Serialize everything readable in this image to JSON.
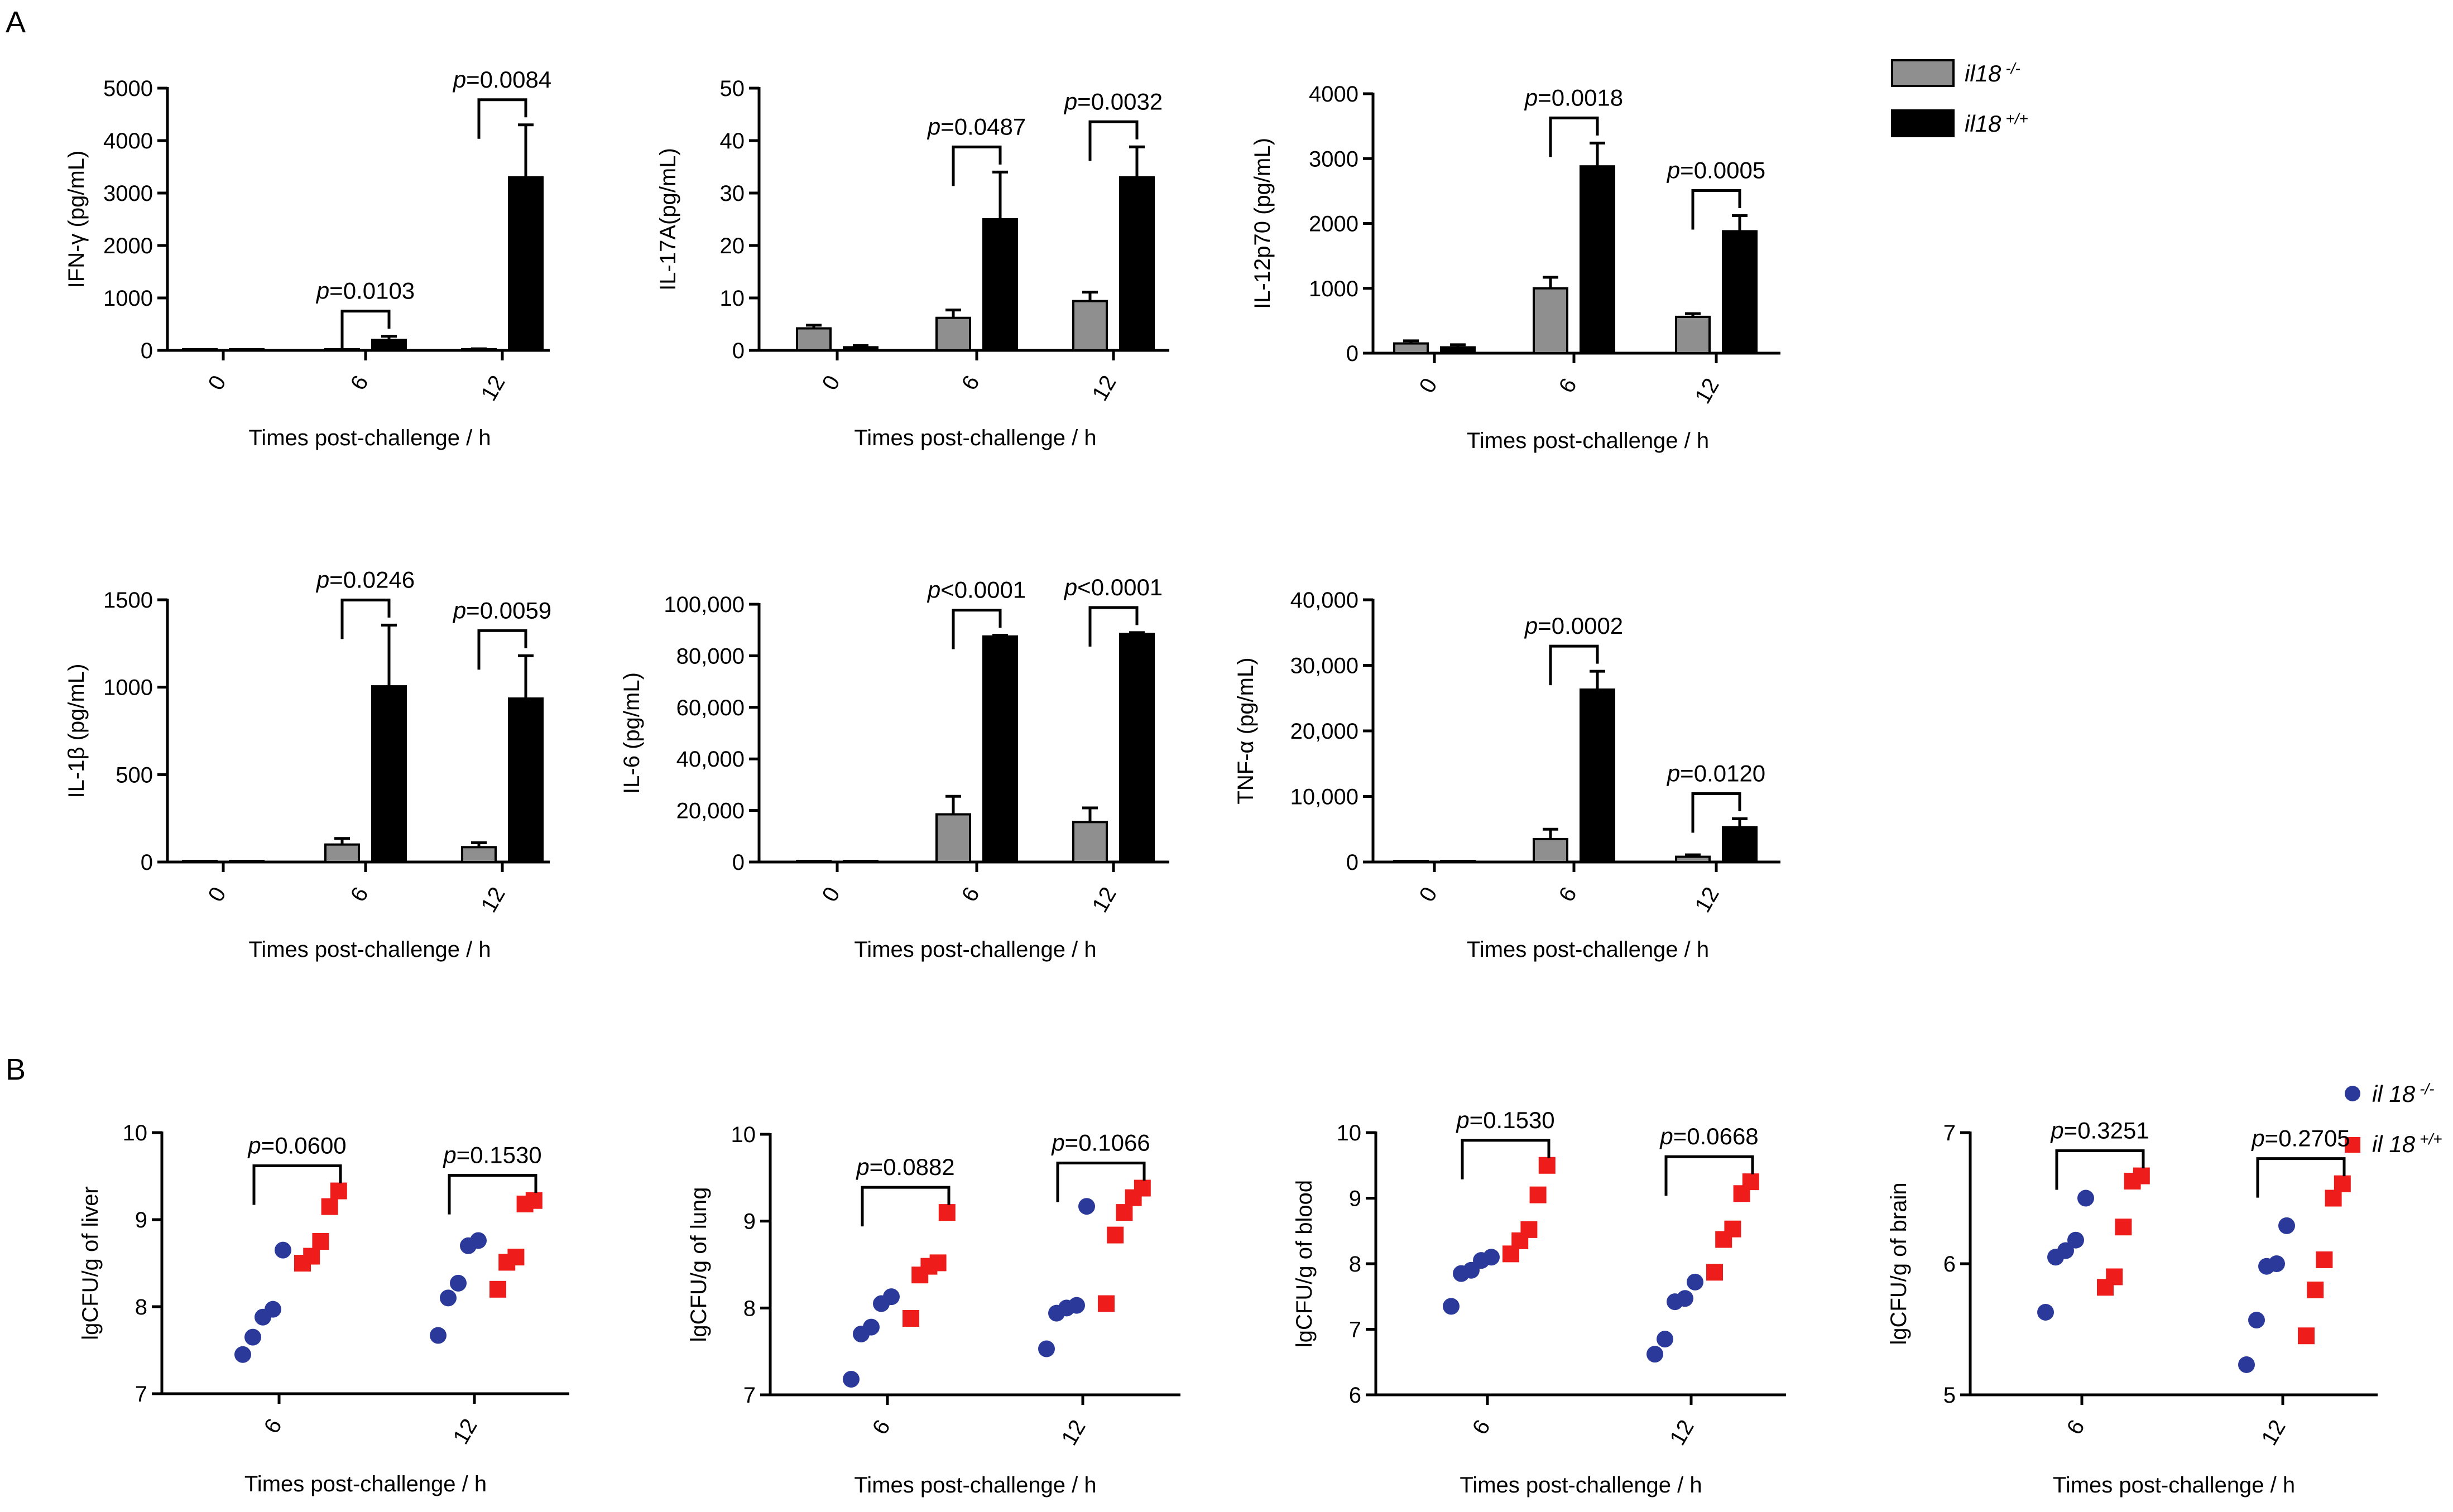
{
  "panel_labels": {
    "A": "A",
    "B": "B"
  },
  "legend_A": {
    "items": [
      {
        "name": "il18",
        "sup": "-/-",
        "color": "#8f8f8f"
      },
      {
        "name": "il18",
        "sup": "+/+",
        "color": "#000000"
      }
    ]
  },
  "legend_B": {
    "items": [
      {
        "name": "il 18",
        "sup": "-/-",
        "color": "#2b3a9a"
      },
      {
        "name": "il 18",
        "sup": "+/+",
        "color": "#ef1c1c"
      }
    ]
  },
  "chart_data": [
    {
      "type": "bar",
      "title": "",
      "ylabel": "IFN-γ  (pg/mL)",
      "xlabel": "Times post-challenge / h",
      "categories": [
        "0",
        "6",
        "12"
      ],
      "ylim": [
        0,
        5000
      ],
      "yticks": [
        0,
        1000,
        2000,
        3000,
        4000,
        5000
      ],
      "ytick_labels": [
        "0",
        "1000",
        "2000",
        "3000",
        "4000",
        "5000"
      ],
      "series": [
        {
          "name": "il18 -/-",
          "values": [
            0,
            0,
            20
          ],
          "errors": [
            0,
            0,
            10
          ]
        },
        {
          "name": "il18 +/+",
          "values": [
            0,
            200,
            3300
          ],
          "errors": [
            0,
            70,
            1000
          ]
        }
      ],
      "pvalues": [
        {
          "category": "6",
          "text": "0.0103"
        },
        {
          "category": "12",
          "text": "0.0084"
        }
      ]
    },
    {
      "type": "bar",
      "title": "",
      "ylabel": "IL-17A(pg/mL)",
      "xlabel": "Times post-challenge / h",
      "categories": [
        "0",
        "6",
        "12"
      ],
      "ylim": [
        0,
        50
      ],
      "yticks": [
        0,
        10,
        20,
        30,
        40,
        50
      ],
      "ytick_labels": [
        "0",
        "10",
        "20",
        "30",
        "40",
        "50"
      ],
      "series": [
        {
          "name": "il18 -/-",
          "values": [
            4.2,
            6.2,
            9.4
          ],
          "errors": [
            0.6,
            1.5,
            1.7
          ]
        },
        {
          "name": "il18 +/+",
          "values": [
            0.6,
            25,
            33
          ],
          "errors": [
            0.3,
            9,
            5.8
          ]
        }
      ],
      "pvalues": [
        {
          "category": "6",
          "text": "0.0487"
        },
        {
          "category": "12",
          "text": "0.0032"
        }
      ]
    },
    {
      "type": "bar",
      "title": "",
      "ylabel": "IL-12p70 (pg/mL)",
      "xlabel": "Times post-challenge / h",
      "categories": [
        "0",
        "6",
        "12"
      ],
      "ylim": [
        0,
        4000
      ],
      "yticks": [
        0,
        1000,
        2000,
        3000,
        4000
      ],
      "ytick_labels": [
        "0",
        "1000",
        "2000",
        "3000",
        "4000"
      ],
      "series": [
        {
          "name": "il18 -/-",
          "values": [
            150,
            1000,
            560
          ],
          "errors": [
            40,
            170,
            50
          ]
        },
        {
          "name": "il18 +/+",
          "values": [
            90,
            2880,
            1880
          ],
          "errors": [
            40,
            360,
            240
          ]
        }
      ],
      "pvalues": [
        {
          "category": "6",
          "text": "0.0018"
        },
        {
          "category": "12",
          "text": "0.0005"
        }
      ]
    },
    {
      "type": "bar",
      "title": "",
      "ylabel": "IL-1β (pg/mL)",
      "xlabel": "Times post-challenge / h",
      "categories": [
        "0",
        "6",
        "12"
      ],
      "ylim": [
        0,
        1500
      ],
      "yticks": [
        0,
        500,
        1000,
        1500
      ],
      "ytick_labels": [
        "0",
        "500",
        "1000",
        "1500"
      ],
      "series": [
        {
          "name": "il18 -/-",
          "values": [
            0,
            100,
            85
          ],
          "errors": [
            0,
            35,
            25
          ]
        },
        {
          "name": "il18 +/+",
          "values": [
            0,
            1005,
            935
          ],
          "errors": [
            0,
            350,
            245
          ]
        }
      ],
      "pvalues": [
        {
          "category": "6",
          "text": "0.0246"
        },
        {
          "category": "12",
          "text": "0.0059"
        }
      ]
    },
    {
      "type": "bar",
      "title": "",
      "ylabel": "IL-6  (pg/mL)",
      "xlabel": "Times post-challenge / h",
      "categories": [
        "0",
        "6",
        "12"
      ],
      "ylim": [
        0,
        100000
      ],
      "yticks": [
        0,
        20000,
        40000,
        60000,
        80000,
        100000
      ],
      "ytick_labels": [
        "0",
        "20,000",
        "40,000",
        "60,000",
        "80,000",
        "100,000"
      ],
      "series": [
        {
          "name": "il18 -/-",
          "values": [
            0,
            18500,
            15500
          ],
          "errors": [
            0,
            7000,
            5500
          ]
        },
        {
          "name": "il18 +/+",
          "values": [
            0,
            87500,
            88500
          ],
          "errors": [
            0,
            500,
            500
          ]
        }
      ],
      "pvalues": [
        {
          "category": "6",
          "text": "<0.0001"
        },
        {
          "category": "12",
          "text": "<0.0001"
        }
      ]
    },
    {
      "type": "bar",
      "title": "",
      "ylabel": "TNF-α (pg/mL)",
      "xlabel": "Times post-challenge / h",
      "categories": [
        "0",
        "6",
        "12"
      ],
      "ylim": [
        0,
        40000
      ],
      "yticks": [
        0,
        10000,
        20000,
        30000,
        40000
      ],
      "ytick_labels": [
        "0",
        "10,000",
        "20,000",
        "30,000",
        "40,000"
      ],
      "series": [
        {
          "name": "il18 -/-",
          "values": [
            0,
            3500,
            800
          ],
          "errors": [
            0,
            1500,
            300
          ]
        },
        {
          "name": "il18 +/+",
          "values": [
            0,
            26300,
            5300
          ],
          "errors": [
            0,
            2800,
            1300
          ]
        }
      ],
      "pvalues": [
        {
          "category": "6",
          "text": "0.0002"
        },
        {
          "category": "12",
          "text": "0.0120"
        }
      ]
    },
    {
      "type": "scatter",
      "title": "",
      "ylabel": "lgCFU/g of liver",
      "xlabel": "Times post-challenge  / h",
      "categories": [
        "6",
        "12"
      ],
      "ylim": [
        7,
        10
      ],
      "yticks": [
        7,
        8,
        9,
        10
      ],
      "ytick_labels": [
        "7",
        "8",
        "9",
        "10"
      ],
      "series": [
        {
          "name": "il 18 -/-",
          "values": [
            [
              7.45,
              7.65,
              7.88,
              7.97,
              8.65
            ],
            [
              7.67,
              8.1,
              8.27,
              8.7,
              8.76
            ]
          ]
        },
        {
          "name": "il 18 +/+",
          "values": [
            [
              8.5,
              8.58,
              8.75,
              9.15,
              9.33
            ],
            [
              8.2,
              8.51,
              8.57,
              9.18,
              9.22
            ]
          ]
        }
      ],
      "pvalues": [
        {
          "category": "6",
          "text": "0.0600"
        },
        {
          "category": "12",
          "text": "0.1530"
        }
      ]
    },
    {
      "type": "scatter",
      "title": "",
      "ylabel": "lgCFU/g of lung",
      "xlabel": "Times post-challenge  / h",
      "categories": [
        "6",
        "12"
      ],
      "ylim": [
        7,
        10
      ],
      "yticks": [
        7,
        8,
        9,
        10
      ],
      "ytick_labels": [
        "7",
        "8",
        "9",
        "10"
      ],
      "series": [
        {
          "name": "il 18 -/-",
          "values": [
            [
              7.18,
              7.7,
              7.78,
              8.05,
              8.13
            ],
            [
              7.53,
              7.94,
              8.0,
              8.03,
              9.17
            ]
          ]
        },
        {
          "name": "il 18 +/+",
          "values": [
            [
              7.88,
              8.38,
              8.48,
              8.52,
              9.1
            ],
            [
              8.05,
              8.84,
              9.1,
              9.27,
              9.38
            ]
          ]
        }
      ],
      "pvalues": [
        {
          "category": "6",
          "text": "0.0882"
        },
        {
          "category": "12",
          "text": "0.1066"
        }
      ]
    },
    {
      "type": "scatter",
      "title": "",
      "ylabel": "lgCFU/g of blood",
      "xlabel": "Times post-challenge  / h",
      "categories": [
        "6",
        "12"
      ],
      "ylim": [
        6,
        10
      ],
      "yticks": [
        6,
        7,
        8,
        9,
        10
      ],
      "ytick_labels": [
        "6",
        "7",
        "8",
        "9",
        "10"
      ],
      "series": [
        {
          "name": "il 18 -/-",
          "values": [
            [
              7.35,
              7.85,
              7.9,
              8.05,
              8.1
            ],
            [
              6.62,
              6.85,
              7.42,
              7.47,
              7.72
            ]
          ]
        },
        {
          "name": "il 18 +/+",
          "values": [
            [
              8.15,
              8.35,
              8.52,
              9.05,
              9.5
            ],
            [
              7.87,
              8.37,
              8.53,
              9.07,
              9.25
            ]
          ]
        }
      ],
      "pvalues": [
        {
          "category": "6",
          "text": "0.1530"
        },
        {
          "category": "12",
          "text": "0.0668"
        }
      ]
    },
    {
      "type": "scatter",
      "title": "",
      "ylabel": "lgCFU/g of brain",
      "xlabel": "Times post-challenge  / h",
      "categories": [
        "6",
        "12"
      ],
      "ylim": [
        5,
        7
      ],
      "yticks": [
        5,
        6,
        7
      ],
      "ytick_labels": [
        "5",
        "6",
        "7"
      ],
      "series": [
        {
          "name": "il 18 -/-",
          "values": [
            [
              5.63,
              6.05,
              6.1,
              6.18,
              6.5
            ],
            [
              5.23,
              5.57,
              5.98,
              6.0,
              6.29
            ]
          ]
        },
        {
          "name": "il 18 +/+",
          "values": [
            [
              5.82,
              5.9,
              6.28,
              6.63,
              6.67
            ],
            [
              5.45,
              5.8,
              6.03,
              6.5,
              6.61
            ]
          ]
        }
      ],
      "pvalues": [
        {
          "category": "6",
          "text": "0.3251"
        },
        {
          "category": "12",
          "text": "0.2705"
        }
      ]
    }
  ]
}
